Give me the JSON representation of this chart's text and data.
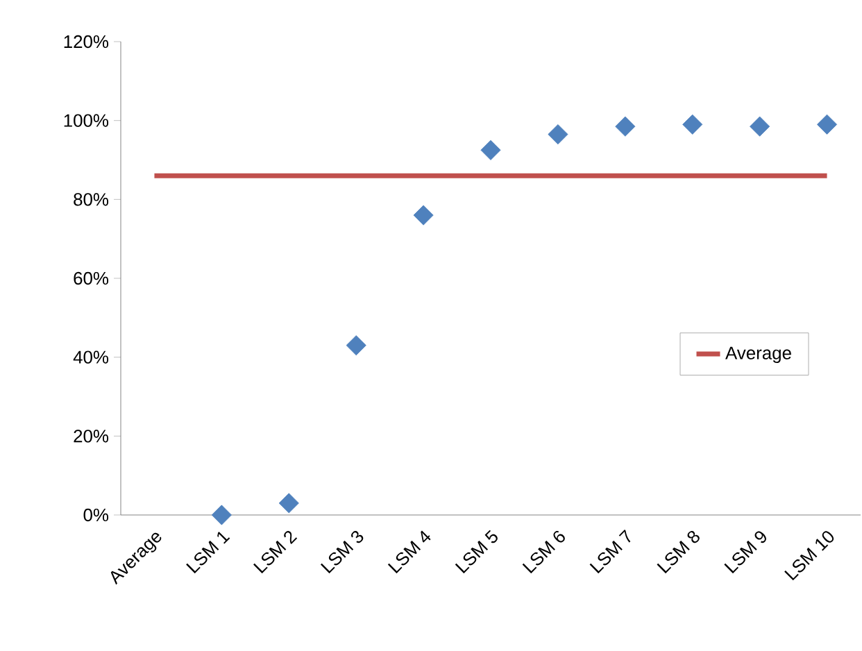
{
  "chart_data": {
    "type": "scatter",
    "categories": [
      "Average",
      "LSM 1",
      "LSM 2",
      "LSM 3",
      "LSM 4",
      "LSM 5",
      "LSM 6",
      "LSM 7",
      "LSM 8",
      "LSM 9",
      "LSM 10"
    ],
    "series": [
      {
        "color": "#4f81bd",
        "marker": "diamond",
        "values": [
          null,
          0,
          3,
          43,
          76,
          92.5,
          96.5,
          98.5,
          99,
          98.5,
          99
        ]
      },
      {
        "type": "line",
        "name": "Average",
        "color": "#c0504d",
        "marker": "none",
        "values": [
          86,
          86,
          86,
          86,
          86,
          86,
          86,
          86,
          86,
          86,
          86
        ]
      }
    ],
    "ylim": [
      0,
      120
    ],
    "yticks": [
      {
        "value": 0,
        "label": "0%"
      },
      {
        "value": 20,
        "label": "20%"
      },
      {
        "value": 40,
        "label": "40%"
      },
      {
        "value": 60,
        "label": "60%"
      },
      {
        "value": 80,
        "label": "80%"
      },
      {
        "value": 100,
        "label": "100%"
      },
      {
        "value": 120,
        "label": "120%"
      }
    ],
    "grid": false,
    "legend": "right"
  }
}
